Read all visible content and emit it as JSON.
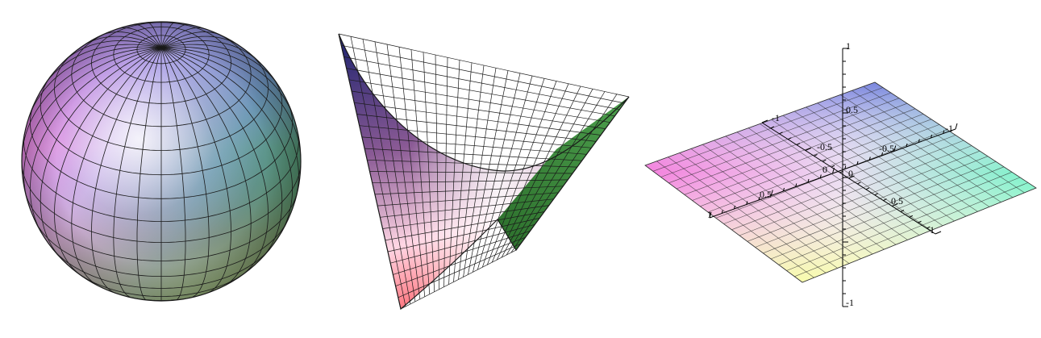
{
  "panels": [
    {
      "name": "sphere",
      "surface": "sphere",
      "grid_lat": 18,
      "grid_lon": 36
    },
    {
      "name": "saddle",
      "surface": "hyperbolic-paraboloid",
      "grid": 24
    },
    {
      "name": "plane",
      "surface": "flat-plane",
      "grid": 20
    }
  ],
  "axes": {
    "x_ticks": [
      "-1",
      "-0.5",
      "0",
      "0.5",
      "1"
    ],
    "y_ticks": [
      "-1",
      "-0.5",
      "0",
      "0.5",
      "1"
    ],
    "z_ticks": [
      "1",
      "0.5",
      "-1"
    ]
  },
  "colors": {
    "magenta": "#f26ad7",
    "blue": "#6a77dc",
    "green": "#3f8a3f",
    "red": "#ff6f78",
    "cyan": "#63f1bf",
    "yellow": "#f8ffa8",
    "navy": "#2b2a73",
    "grid": "#1a1a1a"
  }
}
